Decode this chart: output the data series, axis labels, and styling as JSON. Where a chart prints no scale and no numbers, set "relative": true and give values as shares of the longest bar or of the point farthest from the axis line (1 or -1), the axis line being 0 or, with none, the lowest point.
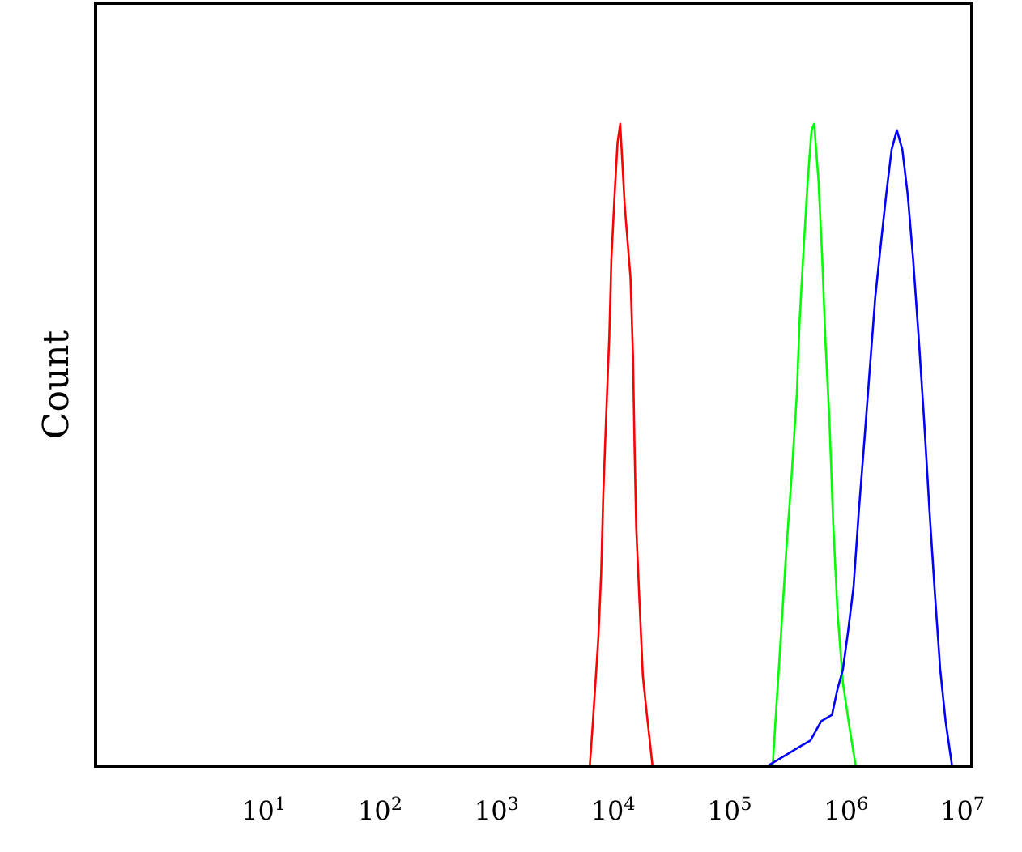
{
  "chart_data": {
    "type": "line",
    "ylabel": "Count",
    "relative": true,
    "log": "x",
    "grid": false,
    "marker": "none",
    "line_style": "solid",
    "xlim": [
      0.36,
      12000000
    ],
    "xticks": [
      {
        "value": 10,
        "label": "10$^{1}$"
      },
      {
        "value": 100,
        "label": "10$^{2}$"
      },
      {
        "value": 1000,
        "label": "10$^{3}$"
      },
      {
        "value": 10000,
        "label": "10$^{4}$"
      },
      {
        "value": 100000,
        "label": "10$^{5}$"
      },
      {
        "value": 1000000,
        "label": "10$^{6}$"
      },
      {
        "value": 10000000,
        "label": "10$^{7}$"
      }
    ],
    "series": [
      {
        "color": "#ff0000",
        "x": [
          6300,
          6650,
          7470,
          7890,
          8220,
          8690,
          9270,
          9660,
          10300,
          10900,
          11500,
          12600,
          14100,
          14800,
          15300,
          15800,
          17000,
          18000,
          19500,
          21800
        ],
        "values": [
          0,
          0.06,
          0.2,
          0.3,
          0.42,
          0.54,
          0.67,
          0.79,
          0.89,
          0.97,
          1,
          0.87,
          0.76,
          0.64,
          0.49,
          0.37,
          0.24,
          0.14,
          0.08,
          0
        ]
      },
      {
        "color": "#00ff00",
        "x": [
          234000,
          275000,
          305000,
          340000,
          378000,
          398000,
          430000,
          468000,
          505000,
          532000,
          580000,
          624000,
          665000,
          719000,
          774000,
          844000,
          938000,
          1070000,
          1210000
        ],
        "values": [
          0,
          0.2,
          0.33,
          0.45,
          0.58,
          0.69,
          0.8,
          0.91,
          0.99,
          1,
          0.91,
          0.79,
          0.66,
          0.54,
          0.38,
          0.24,
          0.13,
          0.06,
          0
        ]
      },
      {
        "color": "#0000ff",
        "x": [
          210000,
          260000,
          322000,
          398000,
          494000,
          612000,
          757000,
          844000,
          938000,
          1040000,
          1160000,
          1290000,
          1440000,
          1600000,
          1780000,
          1980000,
          2210000,
          2460000,
          2730000,
          3040000,
          3380000,
          3760000,
          4190000,
          4670000,
          5190000,
          5780000,
          6430000,
          7150000,
          8130000
        ],
        "values": [
          0,
          0.01,
          0.02,
          0.03,
          0.04,
          0.07,
          0.08,
          0.12,
          0.15,
          0.21,
          0.28,
          0.4,
          0.51,
          0.62,
          0.73,
          0.81,
          0.89,
          0.96,
          0.99,
          0.96,
          0.89,
          0.79,
          0.67,
          0.54,
          0.4,
          0.27,
          0.15,
          0.07,
          0
        ]
      }
    ]
  }
}
